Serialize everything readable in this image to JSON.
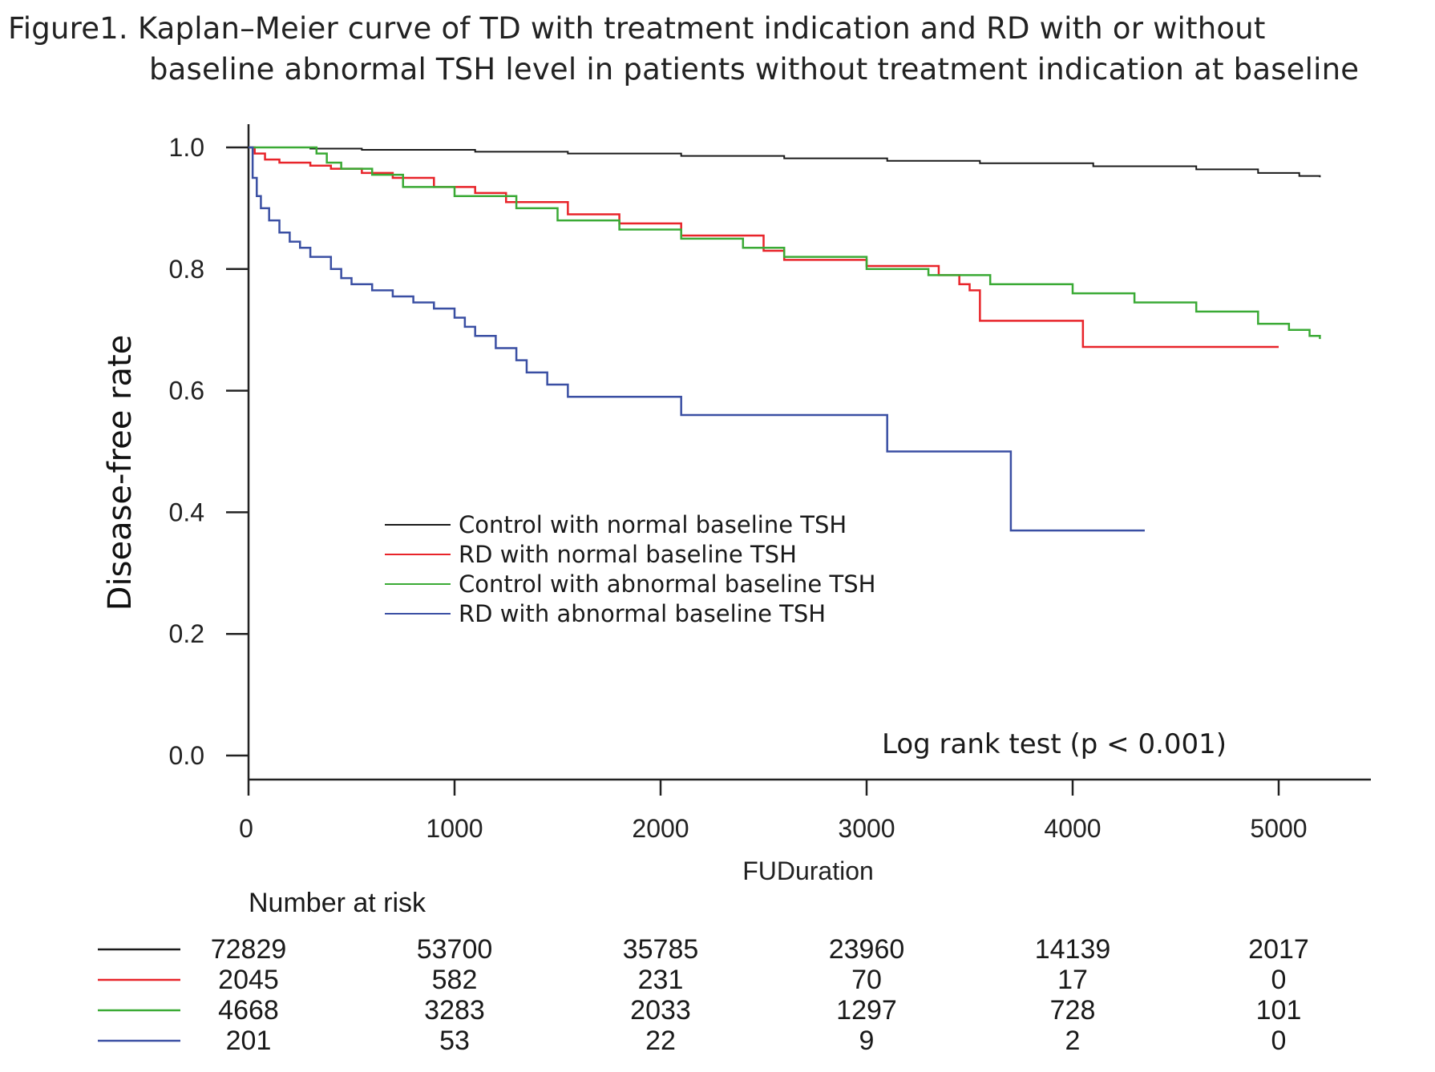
{
  "figure": {
    "title_line1": "Figure1. Kaplan–Meier curve of TD with treatment indication and RD with or without",
    "title_line2": "baseline abnormal TSH level in patients without treatment indication at baseline"
  },
  "chart_data": {
    "type": "line",
    "subtype": "kaplan-meier-step",
    "title": "Kaplan–Meier curve of TD with treatment indication and RD with or without baseline abnormal TSH level in patients without treatment indication at baseline",
    "xlabel": "FUDuration",
    "ylabel": "Disease-free rate",
    "xlim": [
      0,
      5400
    ],
    "ylim": [
      0,
      1.0
    ],
    "x_ticks": [
      0,
      1000,
      2000,
      3000,
      4000,
      5000
    ],
    "x_tick_labels": [
      "0",
      "1000",
      "2000",
      "3000",
      "4000",
      "5000"
    ],
    "y_ticks": [
      0.0,
      0.2,
      0.4,
      0.6,
      0.8,
      1.0
    ],
    "y_tick_labels": [
      "0.0",
      "0.2",
      "0.4",
      "0.6",
      "0.8",
      "1.0"
    ],
    "grid": false,
    "legend_position": "center-left",
    "annotation": "Log rank test (p < 0.001)",
    "series": [
      {
        "name": "Control with normal baseline TSH",
        "color": "#1a1a1a",
        "x": [
          0,
          300,
          550,
          1100,
          1550,
          2100,
          2600,
          3100,
          3550,
          4100,
          4600,
          4900,
          5100,
          5200
        ],
        "y": [
          1.0,
          0.998,
          0.996,
          0.993,
          0.99,
          0.986,
          0.982,
          0.978,
          0.974,
          0.969,
          0.964,
          0.958,
          0.953,
          0.951
        ]
      },
      {
        "name": "RD with normal baseline TSH",
        "color": "#e8242a",
        "x": [
          0,
          30,
          80,
          150,
          300,
          400,
          550,
          700,
          900,
          1100,
          1250,
          1550,
          1800,
          2100,
          2500,
          2600,
          3000,
          3350,
          3450,
          3500,
          3550,
          4050,
          5000
        ],
        "y": [
          1.0,
          0.99,
          0.98,
          0.975,
          0.97,
          0.965,
          0.958,
          0.95,
          0.935,
          0.925,
          0.91,
          0.89,
          0.875,
          0.855,
          0.83,
          0.815,
          0.805,
          0.79,
          0.775,
          0.765,
          0.715,
          0.672,
          0.672
        ]
      },
      {
        "name": "Control with abnormal baseline TSH",
        "color": "#3aaa35",
        "x": [
          0,
          250,
          330,
          380,
          450,
          600,
          750,
          1000,
          1300,
          1500,
          1800,
          2100,
          2400,
          2600,
          3000,
          3300,
          3600,
          4000,
          4300,
          4600,
          4900,
          5050,
          5150,
          5200
        ],
        "y": [
          1.0,
          1.0,
          0.99,
          0.975,
          0.965,
          0.955,
          0.935,
          0.92,
          0.9,
          0.88,
          0.865,
          0.85,
          0.835,
          0.82,
          0.8,
          0.79,
          0.775,
          0.76,
          0.745,
          0.73,
          0.71,
          0.7,
          0.69,
          0.685
        ]
      },
      {
        "name": "RD with abnormal baseline TSH",
        "color": "#3a4fa3",
        "x": [
          0,
          20,
          40,
          60,
          100,
          150,
          200,
          250,
          300,
          400,
          450,
          500,
          600,
          700,
          800,
          900,
          1000,
          1050,
          1100,
          1200,
          1300,
          1350,
          1450,
          1550,
          2100,
          3100,
          3700,
          4350
        ],
        "y": [
          1.0,
          0.95,
          0.92,
          0.9,
          0.88,
          0.86,
          0.845,
          0.835,
          0.82,
          0.8,
          0.785,
          0.775,
          0.765,
          0.755,
          0.745,
          0.735,
          0.72,
          0.705,
          0.69,
          0.67,
          0.65,
          0.63,
          0.61,
          0.59,
          0.56,
          0.5,
          0.37,
          0.37
        ]
      }
    ],
    "number_at_risk": {
      "label": "Number at risk",
      "times": [
        0,
        1000,
        2000,
        3000,
        4000,
        5000
      ],
      "rows": [
        {
          "series": "Control with normal baseline TSH",
          "color": "#1a1a1a",
          "values": [
            "72829",
            "53700",
            "35785",
            "23960",
            "14139",
            "2017"
          ]
        },
        {
          "series": "RD with normal baseline TSH",
          "color": "#e8242a",
          "values": [
            "2045",
            "582",
            "231",
            "70",
            "17",
            "0"
          ]
        },
        {
          "series": "Control with abnormal baseline TSH",
          "color": "#3aaa35",
          "values": [
            "4668",
            "3283",
            "2033",
            "1297",
            "728",
            "101"
          ]
        },
        {
          "series": "RD with abnormal baseline TSH",
          "color": "#3a4fa3",
          "values": [
            "201",
            "53",
            "22",
            "9",
            "2",
            "0"
          ]
        }
      ]
    }
  }
}
